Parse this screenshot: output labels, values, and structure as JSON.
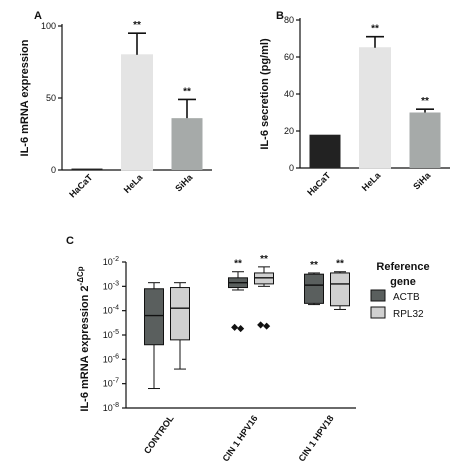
{
  "chart_data": [
    {
      "panel": "A",
      "type": "bar",
      "ylabel": "IL-6 mRNA expression",
      "categories": [
        "HaCaT",
        "HeLa",
        "SiHa"
      ],
      "values": [
        1,
        80,
        36
      ],
      "errors": [
        0.5,
        15,
        13
      ],
      "significance": [
        "",
        "**",
        "**"
      ],
      "colors": [
        "#222222",
        "#e4e4e4",
        "#a6aaa9"
      ],
      "ylim": [
        0,
        100
      ],
      "yticks": [
        "0",
        "50",
        "100"
      ],
      "grid": false
    },
    {
      "panel": "B",
      "type": "bar",
      "ylabel": "IL-6 secretion (pg/ml)",
      "categories": [
        "HaCaT",
        "HeLa",
        "SiHa"
      ],
      "values": [
        18,
        65,
        30
      ],
      "errors": [
        0.6,
        6,
        1.8
      ],
      "significance": [
        "",
        "**",
        "**"
      ],
      "colors": [
        "#222222",
        "#e4e4e4",
        "#a6aaa9"
      ],
      "ylim": [
        0,
        80
      ],
      "yticks": [
        "0",
        "20",
        "40",
        "60",
        "80"
      ],
      "grid": false
    },
    {
      "panel": "C",
      "type": "box",
      "ylabel": "IL-6 mRNA expression 2",
      "ylabel_sup": "-ΔCp",
      "categories": [
        "CONTROL",
        "CIN 1 HPV16",
        "CIN 1 HPV18"
      ],
      "log_scale": true,
      "ylim_exp": [
        -8,
        -2
      ],
      "yticks_exp": [
        -8,
        -7,
        -6,
        -5,
        -4,
        -3,
        -2
      ],
      "tick_base": "10",
      "legend_title_line1": "Reference",
      "legend_title_line2": "gene",
      "legend_position": "right",
      "series": [
        {
          "name": "ACTB",
          "color": "#5a5f5e",
          "boxes": [
            {
              "min_exp": -7.2,
              "q1_exp": -5.4,
              "median_exp": -4.2,
              "q3_exp": -3.1,
              "max_exp": -2.85,
              "outliers_exp": []
            },
            {
              "min_exp": -3.15,
              "q1_exp": -3.05,
              "median_exp": -2.85,
              "q3_exp": -2.65,
              "max_exp": -2.4,
              "outliers_exp": [
                -4.7,
                -4.75
              ],
              "sig": "**"
            },
            {
              "min_exp": -3.75,
              "q1_exp": -3.7,
              "median_exp": -2.95,
              "q3_exp": -2.5,
              "max_exp": -2.45,
              "outliers_exp": [],
              "sig": "**"
            }
          ]
        },
        {
          "name": "RPL32",
          "color": "#d0d0d0",
          "boxes": [
            {
              "min_exp": -6.4,
              "q1_exp": -5.2,
              "median_exp": -3.9,
              "q3_exp": -3.05,
              "max_exp": -2.85,
              "outliers_exp": []
            },
            {
              "min_exp": -3.0,
              "q1_exp": -2.9,
              "median_exp": -2.65,
              "q3_exp": -2.45,
              "max_exp": -2.2,
              "outliers_exp": [
                -4.6,
                -4.65
              ],
              "sig": "**"
            },
            {
              "min_exp": -3.95,
              "q1_exp": -3.8,
              "median_exp": -2.9,
              "q3_exp": -2.45,
              "max_exp": -2.4,
              "outliers_exp": [],
              "sig": "**"
            }
          ]
        }
      ]
    }
  ]
}
